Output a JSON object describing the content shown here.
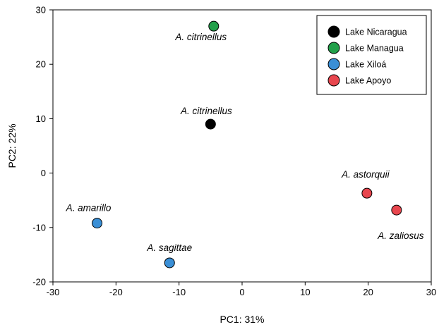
{
  "chart_data": {
    "type": "scatter",
    "xlabel": "PC1: 31%",
    "ylabel": "PC2: 22%",
    "xlim": [
      -30,
      30
    ],
    "ylim": [
      -20,
      30
    ],
    "xticks": [
      "-30",
      "-20",
      "-10",
      "0",
      "10",
      "20",
      "30"
    ],
    "yticks": [
      "-20",
      "-10",
      "0",
      "10",
      "20",
      "30"
    ],
    "grid": false,
    "legend_position": "top-right",
    "series": [
      {
        "name": "Lake Nicaragua",
        "color": "#000000",
        "points": [
          {
            "x": -5.0,
            "y": 9.0,
            "label": "A. citrinellus"
          }
        ]
      },
      {
        "name": "Lake Managua",
        "color": "#22a04a",
        "points": [
          {
            "x": -4.5,
            "y": 27.0,
            "label": "A. citrinellus"
          }
        ]
      },
      {
        "name": "Lake Xiloá",
        "color": "#3a8fd6",
        "points": [
          {
            "x": -23.0,
            "y": -9.2,
            "label": "A. amarillo"
          },
          {
            "x": -11.5,
            "y": -16.5,
            "label": "A. sagittae"
          }
        ]
      },
      {
        "name": "Lake Apoyo",
        "color": "#e8464e",
        "points": [
          {
            "x": 19.8,
            "y": -3.7,
            "label": "A. astorquii"
          },
          {
            "x": 24.5,
            "y": -6.8,
            "label": "A. zaliosus"
          }
        ]
      }
    ]
  }
}
